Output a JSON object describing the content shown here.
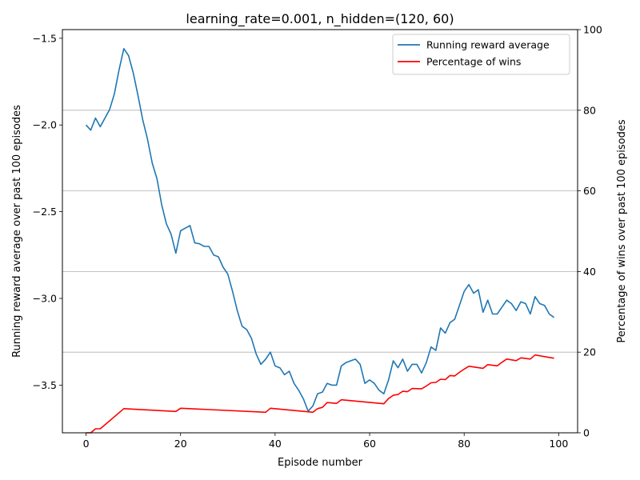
{
  "chart_data": {
    "type": "line",
    "title": "learning_rate=0.001, n_hidden=(120, 60)",
    "xlabel": "Episode number",
    "ylabel_left": "Running reward average over past 100 episodes",
    "ylabel_right": "Percentage of wins over past 100 episodes",
    "xlim": [
      -5,
      104
    ],
    "ylim_left": [
      -3.775,
      -1.45
    ],
    "ylim_right": [
      0,
      100
    ],
    "xticks": [
      0,
      20,
      40,
      60,
      80,
      100
    ],
    "xtick_labels": [
      "0",
      "20",
      "40",
      "60",
      "80",
      "100"
    ],
    "yticks_left": [
      -3.5,
      -3.0,
      -2.5,
      -2.0,
      -1.5
    ],
    "ytick_labels_left": [
      "−3.5",
      "−3.0",
      "−2.5",
      "−2.0",
      "−1.5"
    ],
    "yticks_right": [
      0,
      20,
      40,
      60,
      80,
      100
    ],
    "ytick_labels_right": [
      "0",
      "20",
      "40",
      "60",
      "80",
      "100"
    ],
    "grid": "horizontal lines at right-axis ticks",
    "legend_position": "top-right",
    "series": [
      {
        "name": "Running reward average",
        "axis": "left",
        "color": "#1f77b4",
        "x": [
          0,
          1,
          2,
          3,
          4,
          5,
          6,
          7,
          8,
          9,
          10,
          11,
          12,
          13,
          14,
          15,
          16,
          17,
          18,
          19,
          20,
          21,
          22,
          23,
          24,
          25,
          26,
          27,
          28,
          29,
          30,
          31,
          32,
          33,
          34,
          35,
          36,
          37,
          38,
          39,
          40,
          41,
          42,
          43,
          44,
          45,
          46,
          47,
          48,
          49,
          50,
          51,
          52,
          53,
          54,
          55,
          56,
          57,
          58,
          59,
          60,
          61,
          62,
          63,
          64,
          65,
          66,
          67,
          68,
          69,
          70,
          71,
          72,
          73,
          74,
          75,
          76,
          77,
          78,
          79,
          80,
          81,
          82,
          83,
          84,
          85,
          86,
          87,
          88,
          89,
          90,
          91,
          92,
          93,
          94,
          95,
          96,
          97,
          98,
          99
        ],
        "values": [
          -2.0,
          -2.03,
          -1.96,
          -2.01,
          -1.96,
          -1.91,
          -1.82,
          -1.68,
          -1.56,
          -1.6,
          -1.7,
          -1.83,
          -1.97,
          -2.08,
          -2.22,
          -2.31,
          -2.46,
          -2.57,
          -2.63,
          -2.74,
          -2.61,
          -2.595,
          -2.58,
          -2.68,
          -2.685,
          -2.7,
          -2.7,
          -2.75,
          -2.76,
          -2.82,
          -2.86,
          -2.96,
          -3.07,
          -3.16,
          -3.18,
          -3.23,
          -3.32,
          -3.38,
          -3.35,
          -3.31,
          -3.39,
          -3.4,
          -3.44,
          -3.42,
          -3.49,
          -3.53,
          -3.58,
          -3.65,
          -3.62,
          -3.55,
          -3.54,
          -3.49,
          -3.5,
          -3.5,
          -3.39,
          -3.37,
          -3.36,
          -3.35,
          -3.38,
          -3.49,
          -3.47,
          -3.49,
          -3.53,
          -3.55,
          -3.47,
          -3.36,
          -3.4,
          -3.35,
          -3.42,
          -3.38,
          -3.38,
          -3.43,
          -3.37,
          -3.28,
          -3.3,
          -3.17,
          -3.2,
          -3.14,
          -3.12,
          -3.04,
          -2.96,
          -2.92,
          -2.97,
          -2.95,
          -3.08,
          -3.01,
          -3.09,
          -3.09,
          -3.05,
          -3.01,
          -3.03,
          -3.07,
          -3.02,
          -3.03,
          -3.09,
          -2.99,
          -3.03,
          -3.04,
          -3.09,
          -3.11
        ]
      },
      {
        "name": "Percentage of wins",
        "axis": "right",
        "color": "#ff0000",
        "x": [
          0,
          1,
          2,
          3,
          8,
          19,
          20,
          38,
          39,
          48,
          49,
          50,
          51,
          53,
          54,
          63,
          64,
          65,
          66,
          67,
          68,
          69,
          71,
          72,
          73,
          74,
          75,
          76,
          77,
          78,
          79,
          80,
          81,
          84,
          85,
          87,
          88,
          89,
          91,
          92,
          94,
          95,
          99
        ],
        "values": [
          0,
          0,
          1,
          1,
          6,
          5.3,
          6.1,
          5.1,
          6.1,
          5.1,
          6,
          6.3,
          7.5,
          7.3,
          8.2,
          7.2,
          8.5,
          9.3,
          9.5,
          10.3,
          10.2,
          11,
          10.9,
          11.6,
          12.4,
          12.5,
          13.3,
          13.2,
          14.2,
          14.1,
          15,
          15.8,
          16.5,
          16,
          16.9,
          16.6,
          17.5,
          18.3,
          17.9,
          18.6,
          18.3,
          19.3,
          18.5
        ]
      }
    ]
  }
}
